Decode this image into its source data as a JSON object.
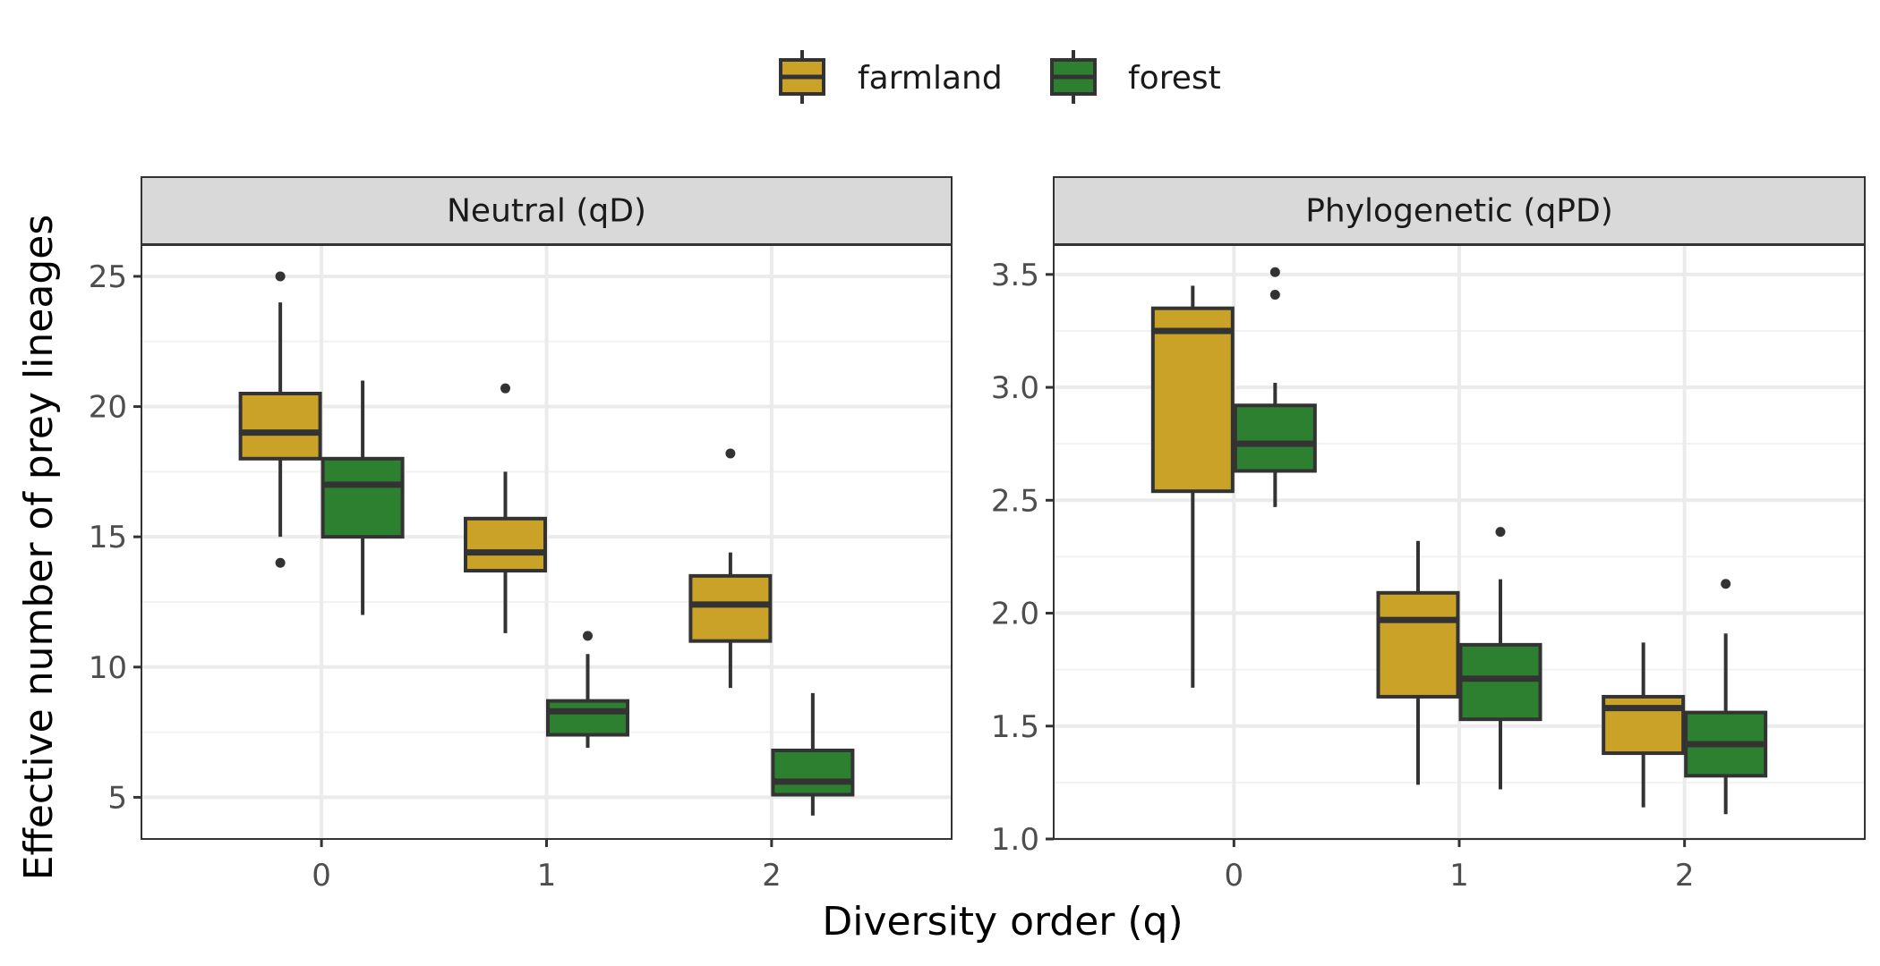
{
  "chart_data": {
    "type": "box",
    "x_label": "Diversity order (q)",
    "y_label": "Effective number of prey lineages",
    "categories": [
      "0",
      "1",
      "2"
    ],
    "legend": {
      "position": "top",
      "groups": [
        {
          "name": "farmland",
          "color": "#C9A227"
        },
        {
          "name": "forest",
          "color": "#2E8031"
        }
      ]
    },
    "grid": true,
    "facets": [
      {
        "title": "Neutral (qD)",
        "y_range": [
          3.4,
          26.2
        ],
        "y_ticks": [
          5,
          10,
          15,
          20,
          25
        ],
        "boxes": [
          {
            "category": "0",
            "group": "farmland",
            "min": 15,
            "q1": 18,
            "median": 19,
            "q3": 20.5,
            "max": 24,
            "outliers": [
              25,
              14
            ]
          },
          {
            "category": "0",
            "group": "forest",
            "min": 12,
            "q1": 15,
            "median": 17,
            "q3": 18,
            "max": 21,
            "outliers": []
          },
          {
            "category": "1",
            "group": "farmland",
            "min": 11.3,
            "q1": 13.7,
            "median": 14.4,
            "q3": 15.7,
            "max": 17.5,
            "outliers": [
              20.7
            ]
          },
          {
            "category": "1",
            "group": "forest",
            "min": 6.9,
            "q1": 7.4,
            "median": 8.3,
            "q3": 8.7,
            "max": 10.5,
            "outliers": [
              11.2
            ]
          },
          {
            "category": "2",
            "group": "farmland",
            "min": 9.2,
            "q1": 11,
            "median": 12.4,
            "q3": 13.5,
            "max": 14.4,
            "outliers": [
              18.2
            ]
          },
          {
            "category": "2",
            "group": "forest",
            "min": 4.3,
            "q1": 5.1,
            "median": 5.6,
            "q3": 6.8,
            "max": 9,
            "outliers": []
          }
        ]
      },
      {
        "title": "Phylogenetic (qPD)",
        "y_range": [
          1.0,
          3.63
        ],
        "y_ticks": [
          1.0,
          1.5,
          2.0,
          2.5,
          3.0,
          3.5
        ],
        "y_tick_labels": [
          "1.0",
          "1.5",
          "2.0",
          "2.5",
          "3.0",
          "3.5"
        ],
        "boxes": [
          {
            "category": "0",
            "group": "farmland",
            "min": 1.67,
            "q1": 2.54,
            "median": 3.25,
            "q3": 3.35,
            "max": 3.45,
            "outliers": []
          },
          {
            "category": "0",
            "group": "forest",
            "min": 2.47,
            "q1": 2.63,
            "median": 2.75,
            "q3": 2.92,
            "max": 3.02,
            "outliers": [
              3.41,
              3.51
            ]
          },
          {
            "category": "1",
            "group": "farmland",
            "min": 1.24,
            "q1": 1.63,
            "median": 1.97,
            "q3": 2.09,
            "max": 2.32,
            "outliers": []
          },
          {
            "category": "1",
            "group": "forest",
            "min": 1.22,
            "q1": 1.53,
            "median": 1.71,
            "q3": 1.86,
            "max": 2.15,
            "outliers": [
              2.36
            ]
          },
          {
            "category": "2",
            "group": "farmland",
            "min": 1.14,
            "q1": 1.38,
            "median": 1.58,
            "q3": 1.63,
            "max": 1.87,
            "outliers": []
          },
          {
            "category": "2",
            "group": "forest",
            "min": 1.11,
            "q1": 1.28,
            "median": 1.42,
            "q3": 1.56,
            "max": 1.91,
            "outliers": [
              2.13
            ]
          }
        ]
      }
    ]
  }
}
